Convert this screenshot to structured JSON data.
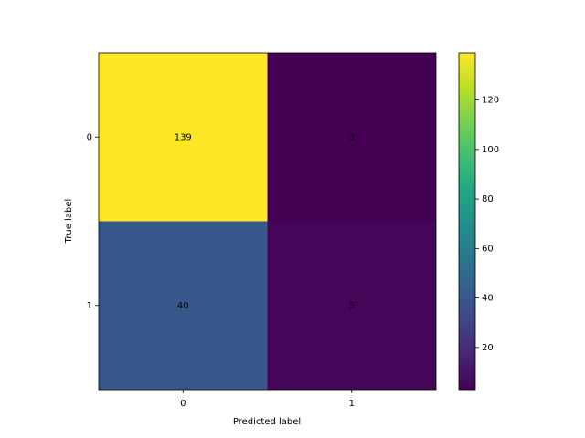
{
  "chart_data": {
    "type": "heatmap",
    "x_label": "Predicted label",
    "y_label": "True label",
    "x_categories": [
      "0",
      "1"
    ],
    "y_categories": [
      "0",
      "1"
    ],
    "values": [
      [
        139,
        3
      ],
      [
        40,
        5
      ]
    ],
    "colormap": "viridis",
    "zlim": [
      3,
      139
    ],
    "zticks": [
      20,
      40,
      60,
      80,
      100,
      120
    ]
  }
}
